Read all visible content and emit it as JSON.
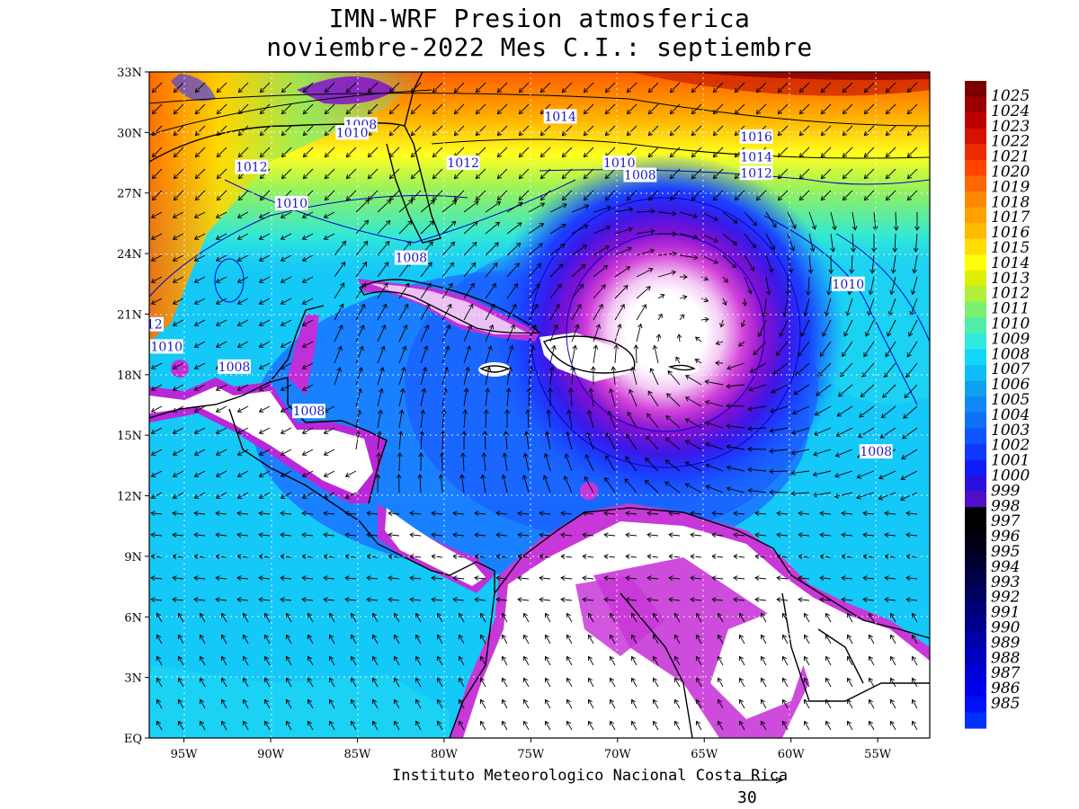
{
  "title": {
    "line1": "IMN-WRF  Presion atmosferica",
    "line2": "noviembre-2022 Mes C.I.: septiembre"
  },
  "credit": "Instituto Meteorologico Nacional Costa Rica",
  "vector_scale": {
    "label": "30"
  },
  "map": {
    "lon_range": [
      -97,
      -52
    ],
    "lat_range": [
      0,
      33
    ],
    "lat_ticks": [
      "33N",
      "30N",
      "27N",
      "24N",
      "21N",
      "18N",
      "15N",
      "12N",
      "9N",
      "6N",
      "3N",
      "EQ"
    ],
    "lon_ticks": [
      "95W",
      "90W",
      "85W",
      "80W",
      "75W",
      "70W",
      "65W",
      "60W",
      "55W"
    ],
    "low_center": {
      "lon": -65,
      "lat": 20.5,
      "pressure_hpa": 985
    }
  },
  "contour_labels": [
    {
      "text": "1008",
      "lon": -84.8,
      "lat": 30.4
    },
    {
      "text": "1010",
      "lon": -85.3,
      "lat": 30.0
    },
    {
      "text": "1014",
      "lon": -73.3,
      "lat": 30.8
    },
    {
      "text": "1016",
      "lon": -62.0,
      "lat": 29.8
    },
    {
      "text": "1014",
      "lon": -62.0,
      "lat": 28.8
    },
    {
      "text": "1012",
      "lon": -62.0,
      "lat": 28.0
    },
    {
      "text": "1010",
      "lon": -69.9,
      "lat": 28.5
    },
    {
      "text": "1008",
      "lon": -68.7,
      "lat": 27.9
    },
    {
      "text": "1012",
      "lon": -91.1,
      "lat": 28.3
    },
    {
      "text": "1012",
      "lon": -78.9,
      "lat": 28.5
    },
    {
      "text": "1010",
      "lon": -88.8,
      "lat": 26.5
    },
    {
      "text": "1008",
      "lon": -81.9,
      "lat": 23.8
    },
    {
      "text": "1010",
      "lon": -96.0,
      "lat": 19.4
    },
    {
      "text": "1008",
      "lon": -92.1,
      "lat": 18.4
    },
    {
      "text": "1008",
      "lon": -87.8,
      "lat": 16.2
    },
    {
      "text": "1010",
      "lon": -56.7,
      "lat": 22.5
    },
    {
      "text": "1008",
      "lon": -55.1,
      "lat": 14.2
    },
    {
      "text": "12",
      "lon": -96.7,
      "lat": 20.5
    }
  ],
  "colorbar": {
    "labels": [
      "1025",
      "1024",
      "1023",
      "1022",
      "1021",
      "1020",
      "1019",
      "1018",
      "1017",
      "1016",
      "1015",
      "1014",
      "1013",
      "1012",
      "1011",
      "1010",
      "1009",
      "1008",
      "1007",
      "1006",
      "1005",
      "1004",
      "1003",
      "1002",
      "1001",
      "1000",
      "999",
      "998",
      "997",
      "996",
      "995",
      "994",
      "993",
      "992",
      "991",
      "990",
      "989",
      "988",
      "987",
      "986",
      "985"
    ],
    "colors": [
      "#7a0000",
      "#9a0000",
      "#bb0000",
      "#d81000",
      "#ee2a00",
      "#ff4400",
      "#ff6600",
      "#ff8800",
      "#ffa000",
      "#ffbb00",
      "#ffdd00",
      "#ffff00",
      "#ddf000",
      "#aef03a",
      "#7af06e",
      "#50eeaa",
      "#30eae0",
      "#10d8f8",
      "#10bcf8",
      "#10a0f0",
      "#1088f8",
      "#1070f8",
      "#1055ff",
      "#1038ff",
      "#101cf8",
      "#2a10e0",
      "#5010c8",
      "#000000",
      "#000008",
      "#000018",
      "#000030",
      "#000048",
      "#000060",
      "#000078",
      "#000090",
      "#0000a8",
      "#0000c0",
      "#0000d8",
      "#0000ee",
      "#0010ff",
      "#0030ff"
    ]
  }
}
